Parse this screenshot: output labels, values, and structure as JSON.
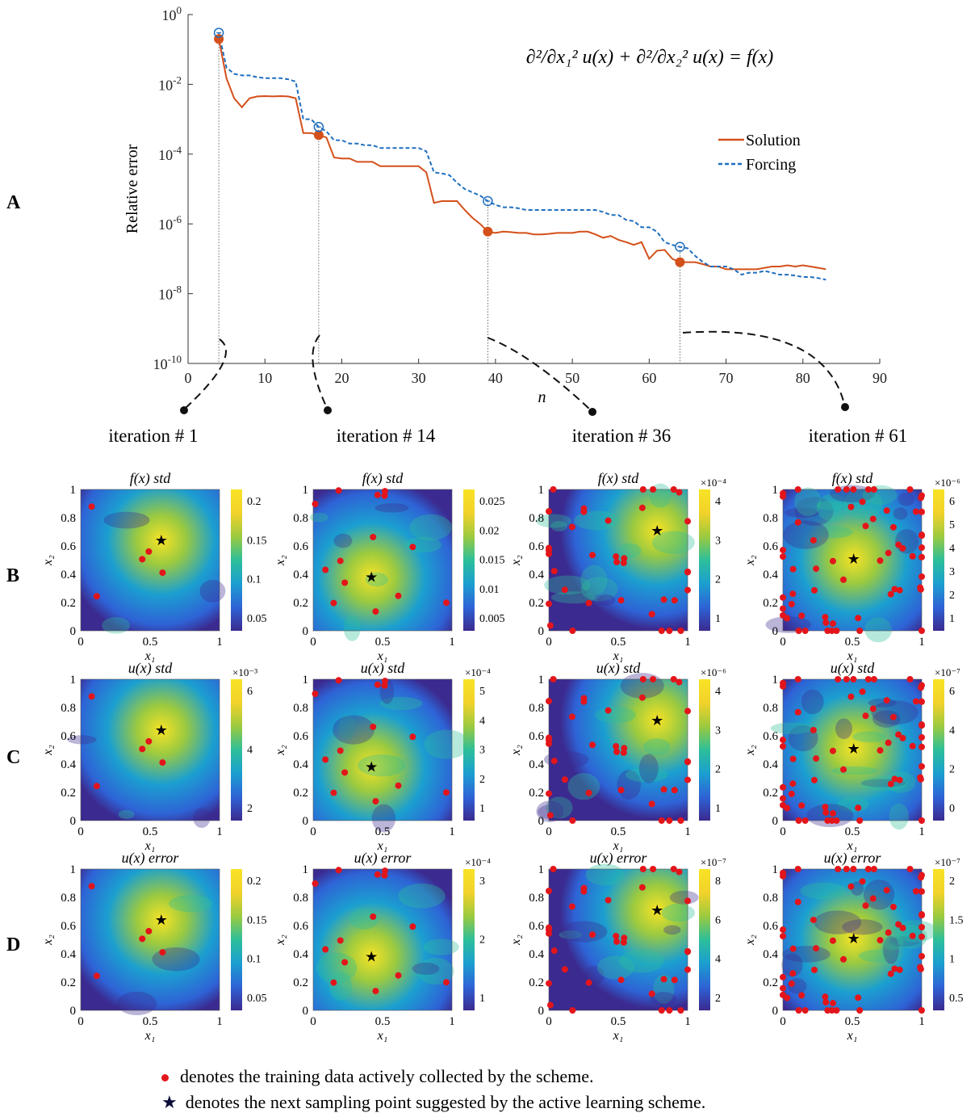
{
  "chart_data": [
    {
      "type": "line",
      "panel": "A",
      "title": "",
      "equation": "∂²/∂x₁² u(x) + ∂²/∂x₂² u(x) = f(x)",
      "xlabel": "n",
      "ylabel": "Relative error",
      "yscale": "log",
      "xlim": [
        0,
        90
      ],
      "ylim": [
        1e-10,
        1
      ],
      "xticks": [
        0,
        10,
        20,
        30,
        40,
        50,
        60,
        70,
        80,
        90
      ],
      "yticks": [
        {
          "exp": "0",
          "value": 1
        },
        {
          "exp": "-2",
          "value": 0.01
        },
        {
          "exp": "-4",
          "value": 0.0001
        },
        {
          "exp": "-6",
          "value": 1e-06
        },
        {
          "exp": "-8",
          "value": 1e-08
        },
        {
          "exp": "-10",
          "value": 1e-10
        }
      ],
      "legend": {
        "position": "top-right",
        "entries": [
          "Solution",
          "Forcing"
        ]
      },
      "series": [
        {
          "name": "Solution",
          "color": "#d4501a",
          "style": "solid",
          "x": [
            4,
            5,
            6,
            7,
            8,
            9,
            10,
            11,
            12,
            13,
            14,
            15,
            16,
            17,
            18,
            19,
            20,
            21,
            22,
            23,
            24,
            25,
            26,
            27,
            28,
            29,
            30,
            31,
            32,
            33,
            34,
            35,
            36,
            37,
            38,
            39,
            40,
            41,
            42,
            43,
            44,
            45,
            46,
            47,
            48,
            49,
            50,
            51,
            52,
            53,
            54,
            55,
            56,
            57,
            58,
            59,
            60,
            61,
            62,
            63,
            64,
            65,
            66,
            67,
            68,
            69,
            70,
            71,
            72,
            73,
            74,
            75,
            76,
            77,
            78,
            79,
            80,
            81,
            82,
            83
          ],
          "y": [
            0.2,
            0.015,
            0.004,
            0.0022,
            0.004,
            0.0045,
            0.0046,
            0.0045,
            0.0046,
            0.0045,
            0.004,
            0.0004,
            0.0004,
            0.00035,
            0.0003,
            8e-05,
            7.5e-05,
            7.5e-05,
            6e-05,
            6e-05,
            6e-05,
            4.5e-05,
            4.5e-05,
            4.5e-05,
            4.5e-05,
            4.5e-05,
            4.5e-05,
            3e-05,
            4e-06,
            4.5e-06,
            4.5e-06,
            4.5e-06,
            2.5e-06,
            1.5e-06,
            1e-06,
            6e-07,
            5.5e-07,
            6e-07,
            5.8e-07,
            5.5e-07,
            5.5e-07,
            5e-07,
            5e-07,
            5.2e-07,
            5.5e-07,
            5.5e-07,
            5.5e-07,
            6e-07,
            6e-07,
            5e-07,
            4e-07,
            4.5e-07,
            3.5e-07,
            3e-07,
            2.5e-07,
            3e-07,
            1e-07,
            1.7e-07,
            1.8e-07,
            1e-07,
            8e-08,
            8e-08,
            8e-08,
            7e-08,
            6e-08,
            6e-08,
            5e-08,
            5e-08,
            5e-08,
            5e-08,
            5e-08,
            5.5e-08,
            6e-08,
            6e-08,
            6.5e-08,
            6e-08,
            6.5e-08,
            6e-08,
            5.5e-08,
            5e-08
          ]
        },
        {
          "name": "Forcing",
          "color": "#1f6fbf",
          "style": "dashed",
          "x": [
            4,
            5,
            6,
            7,
            8,
            9,
            10,
            11,
            12,
            13,
            14,
            15,
            16,
            17,
            18,
            19,
            20,
            21,
            22,
            23,
            24,
            25,
            26,
            27,
            28,
            29,
            30,
            31,
            32,
            33,
            34,
            35,
            36,
            37,
            38,
            39,
            40,
            41,
            42,
            43,
            44,
            45,
            46,
            47,
            48,
            49,
            50,
            51,
            52,
            53,
            54,
            55,
            56,
            57,
            58,
            59,
            60,
            61,
            62,
            63,
            64,
            65,
            66,
            67,
            68,
            69,
            70,
            71,
            72,
            73,
            74,
            75,
            76,
            77,
            78,
            79,
            80,
            81,
            82,
            83
          ],
          "y": [
            0.3,
            0.03,
            0.02,
            0.018,
            0.018,
            0.016,
            0.015,
            0.015,
            0.015,
            0.014,
            0.012,
            0.001,
            0.001,
            0.0006,
            0.00045,
            0.00025,
            0.00025,
            0.0002,
            0.0002,
            0.00018,
            0.00018,
            0.00015,
            0.00015,
            0.00015,
            0.00015,
            0.00015,
            0.00015,
            0.00012,
            3e-05,
            2.8e-05,
            2.5e-05,
            1.5e-05,
            1e-05,
            8e-06,
            6.5e-06,
            4.5e-06,
            3.5e-06,
            3e-06,
            3e-06,
            2.8e-06,
            2.5e-06,
            2.5e-06,
            2.5e-06,
            2.5e-06,
            2.5e-06,
            2.5e-06,
            2.5e-06,
            2.5e-06,
            2.5e-06,
            2.5e-06,
            2.2e-06,
            1.8e-06,
            1.8e-06,
            1.3e-06,
            1.2e-06,
            8e-07,
            8e-07,
            6e-07,
            3e-07,
            2.5e-07,
            2.2e-07,
            2e-07,
            1.2e-07,
            8e-08,
            6e-08,
            6e-08,
            6e-08,
            5e-08,
            3.5e-08,
            4e-08,
            4e-08,
            4.5e-08,
            4e-08,
            3.5e-08,
            3.5e-08,
            3.3e-08,
            3e-08,
            3e-08,
            2.8e-08,
            2.5e-08
          ]
        }
      ],
      "markers": [
        {
          "n": 4,
          "solution": 0.2,
          "forcing": 0.3
        },
        {
          "n": 17,
          "solution": 0.00035,
          "forcing": 0.0006
        },
        {
          "n": 39,
          "solution": 6e-07,
          "forcing": 4.5e-06
        },
        {
          "n": 64,
          "solution": 8e-08,
          "forcing": 2.2e-07
        }
      ]
    }
  ],
  "row_labels": [
    "A",
    "B",
    "C",
    "D"
  ],
  "iterations": [
    "iteration # 1",
    "iteration # 14",
    "iteration # 36",
    "iteration # 61"
  ],
  "rows": [
    {
      "key": "B",
      "panels": [
        {
          "title": "f(x) std",
          "multiplier": "",
          "cticks": [
            "0.2",
            "0.15",
            "0.1",
            "0.05"
          ]
        },
        {
          "title": "f(x) std",
          "multiplier": "",
          "cticks": [
            "0.025",
            "0.02",
            "0.015",
            "0.01",
            "0.005"
          ]
        },
        {
          "title": "f(x) std",
          "multiplier": "×10⁻⁴",
          "cticks": [
            "4",
            "3",
            "2",
            "1"
          ]
        },
        {
          "title": "f(x) std",
          "multiplier": "×10⁻⁶",
          "cticks": [
            "6",
            "5",
            "4",
            "3",
            "2",
            "1"
          ]
        }
      ]
    },
    {
      "key": "C",
      "panels": [
        {
          "title": "u(x) std",
          "multiplier": "×10⁻³",
          "cticks": [
            "6",
            "4",
            "2"
          ]
        },
        {
          "title": "u(x) std",
          "multiplier": "×10⁻⁴",
          "cticks": [
            "5",
            "4",
            "3",
            "2",
            "1"
          ]
        },
        {
          "title": "u(x) std",
          "multiplier": "×10⁻⁶",
          "cticks": [
            "4",
            "3",
            "2",
            "1"
          ]
        },
        {
          "title": "u(x) std",
          "multiplier": "×10⁻⁷",
          "cticks": [
            "6",
            "4",
            "2",
            "0"
          ]
        }
      ]
    },
    {
      "key": "D",
      "panels": [
        {
          "title": "u(x) error",
          "multiplier": "",
          "cticks": [
            "0.2",
            "0.15",
            "0.1",
            "0.05"
          ]
        },
        {
          "title": "u(x) error",
          "multiplier": "×10⁻⁴",
          "cticks": [
            "3",
            "2",
            "1"
          ]
        },
        {
          "title": "u(x) error",
          "multiplier": "×10⁻⁷",
          "cticks": [
            "8",
            "6",
            "4",
            "2"
          ]
        },
        {
          "title": "u(x) error",
          "multiplier": "×10⁻⁷",
          "cticks": [
            "2",
            "1.5",
            "1",
            "0.5"
          ]
        }
      ]
    }
  ],
  "heatmap_axes": {
    "xlabel": "x₁",
    "ylabel": "x₂",
    "xticks": [
      "0",
      "0.5",
      "1"
    ],
    "yticks": [
      "1",
      "0.8",
      "0.6",
      "0.4",
      "0.2",
      "0"
    ]
  },
  "next_points": [
    [
      0.58,
      0.64
    ],
    [
      0.42,
      0.38
    ],
    [
      0.78,
      0.71
    ],
    [
      0.51,
      0.51
    ]
  ],
  "footer": {
    "red_dot_text": "denotes the training data actively collected by the scheme.",
    "star_text": "denotes the next sampling point suggested by the active learning scheme."
  }
}
